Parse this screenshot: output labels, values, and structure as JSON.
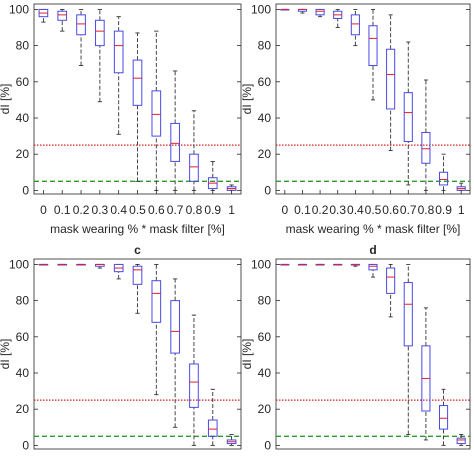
{
  "colors": {
    "box": "#4a4ae6",
    "median": "#e0202e",
    "whisker": "#333333",
    "outlier": "#444444",
    "upper_line": "#d42020",
    "lower_line": "#2e9a2e"
  },
  "chart_data": [
    {
      "type": "box",
      "title": "",
      "xlabel": "mask wearing % * mask filter [%]",
      "ylabel": "dI [%]",
      "categories": [
        "0",
        "0.1",
        "0.2",
        "0.3",
        "0.4",
        "0.5",
        "0.6",
        "0.7",
        "0.8",
        "0.9",
        "1"
      ],
      "ylim": [
        -2,
        103
      ],
      "yticks": [
        "0",
        "20",
        "40",
        "60",
        "80",
        "100"
      ],
      "reference_lines": [
        25,
        5
      ],
      "boxes": [
        {
          "min": 93,
          "q1": 96,
          "median": 98,
          "q3": 100,
          "max": 100,
          "outliers": []
        },
        {
          "min": 88,
          "q1": 94,
          "median": 97,
          "q3": 99,
          "max": 100,
          "outliers": []
        },
        {
          "min": 69,
          "q1": 86,
          "median": 92,
          "q3": 97,
          "max": 100,
          "outliers": []
        },
        {
          "min": 49,
          "q1": 80,
          "median": 88,
          "q3": 94,
          "max": 100,
          "outliers": []
        },
        {
          "min": 31,
          "q1": 65,
          "median": 80,
          "q3": 88,
          "max": 96,
          "outliers": []
        },
        {
          "min": 5,
          "q1": 47,
          "median": 62,
          "q3": 72,
          "max": 87,
          "outliers": []
        },
        {
          "min": 0,
          "q1": 30,
          "median": 42,
          "q3": 55,
          "max": 88,
          "outliers": []
        },
        {
          "min": 0,
          "q1": 16,
          "median": 26,
          "q3": 37,
          "max": 66,
          "outliers": []
        },
        {
          "min": 0,
          "q1": 5,
          "median": 13,
          "q3": 20,
          "max": 44,
          "outliers": []
        },
        {
          "min": 0,
          "q1": 1,
          "median": 4,
          "q3": 7,
          "max": 16,
          "outliers": []
        },
        {
          "min": 0,
          "q1": 0,
          "median": 1,
          "q3": 2,
          "max": 3,
          "outliers": []
        }
      ]
    },
    {
      "type": "box",
      "title": "",
      "xlabel": "mask wearing % * mask filter [%]",
      "ylabel": "dI [%]",
      "categories": [
        "0",
        "0.1",
        "0.2",
        "0.3",
        "0.4",
        "0.5",
        "0.6",
        "0.7",
        "0.8",
        "0.9",
        "1"
      ],
      "ylim": [
        -2,
        103
      ],
      "yticks": [
        "0",
        "20",
        "40",
        "60",
        "80",
        "100"
      ],
      "reference_lines": [
        25,
        5
      ],
      "boxes": [
        {
          "min": 100,
          "q1": 100,
          "median": 100,
          "q3": 100,
          "max": 100,
          "outliers": []
        },
        {
          "min": 98,
          "q1": 99,
          "median": 100,
          "q3": 100,
          "max": 100,
          "outliers": []
        },
        {
          "min": 96,
          "q1": 97,
          "median": 99,
          "q3": 100,
          "max": 100,
          "outliers": []
        },
        {
          "min": 90,
          "q1": 95,
          "median": 97,
          "q3": 99,
          "max": 100,
          "outliers": []
        },
        {
          "min": 80,
          "q1": 86,
          "median": 92,
          "q3": 97,
          "max": 100,
          "outliers": []
        },
        {
          "min": 50,
          "q1": 69,
          "median": 84,
          "q3": 91,
          "max": 100,
          "outliers": []
        },
        {
          "min": 22,
          "q1": 45,
          "median": 64,
          "q3": 78,
          "max": 97,
          "outliers": []
        },
        {
          "min": 3,
          "q1": 27,
          "median": 43,
          "q3": 54,
          "max": 82,
          "outliers": []
        },
        {
          "min": 0,
          "q1": 15,
          "median": 23,
          "q3": 32,
          "max": 61,
          "outliers": []
        },
        {
          "min": 0,
          "q1": 3,
          "median": 6,
          "q3": 10,
          "max": 20,
          "outliers": []
        },
        {
          "min": 0,
          "q1": 0,
          "median": 1,
          "q3": 2,
          "max": 4,
          "outliers": []
        }
      ]
    },
    {
      "type": "box",
      "title": "c",
      "xlabel": "",
      "ylabel": "dI [%]",
      "categories": [],
      "ylim": [
        -2,
        103
      ],
      "yticks": [
        "0",
        "20",
        "40",
        "60",
        "80",
        "100"
      ],
      "reference_lines": [
        25,
        5
      ],
      "boxes": [
        {
          "min": 100,
          "q1": 100,
          "median": 100,
          "q3": 100,
          "max": 100,
          "outliers": []
        },
        {
          "min": 100,
          "q1": 100,
          "median": 100,
          "q3": 100,
          "max": 100,
          "outliers": []
        },
        {
          "min": 100,
          "q1": 100,
          "median": 100,
          "q3": 100,
          "max": 100,
          "outliers": []
        },
        {
          "min": 98,
          "q1": 99,
          "median": 100,
          "q3": 100,
          "max": 100,
          "outliers": []
        },
        {
          "min": 92,
          "q1": 96,
          "median": 98,
          "q3": 100,
          "max": 100,
          "outliers": []
        },
        {
          "min": 73,
          "q1": 89,
          "median": 97,
          "q3": 99,
          "max": 100,
          "outliers": []
        },
        {
          "min": 28,
          "q1": 68,
          "median": 84,
          "q3": 91,
          "max": 100,
          "outliers": []
        },
        {
          "min": 10,
          "q1": 51,
          "median": 63,
          "q3": 80,
          "max": 92,
          "outliers": []
        },
        {
          "min": 0,
          "q1": 21,
          "median": 35,
          "q3": 45,
          "max": 72,
          "outliers": []
        },
        {
          "min": 0,
          "q1": 5,
          "median": 9,
          "q3": 14,
          "max": 31,
          "outliers": []
        },
        {
          "min": 0,
          "q1": 1,
          "median": 2,
          "q3": 3,
          "max": 6,
          "outliers": []
        }
      ]
    },
    {
      "type": "box",
      "title": "d",
      "xlabel": "",
      "ylabel": "dI [%]",
      "categories": [],
      "ylim": [
        -2,
        103
      ],
      "yticks": [
        "0",
        "20",
        "40",
        "60",
        "80",
        "100"
      ],
      "reference_lines": [
        25,
        5
      ],
      "boxes": [
        {
          "min": 100,
          "q1": 100,
          "median": 100,
          "q3": 100,
          "max": 100,
          "outliers": []
        },
        {
          "min": 100,
          "q1": 100,
          "median": 100,
          "q3": 100,
          "max": 100,
          "outliers": []
        },
        {
          "min": 100,
          "q1": 100,
          "median": 100,
          "q3": 100,
          "max": 100,
          "outliers": []
        },
        {
          "min": 100,
          "q1": 100,
          "median": 100,
          "q3": 100,
          "max": 100,
          "outliers": []
        },
        {
          "min": 99,
          "q1": 100,
          "median": 100,
          "q3": 100,
          "max": 100,
          "outliers": []
        },
        {
          "min": 93,
          "q1": 97,
          "median": 99,
          "q3": 100,
          "max": 100,
          "outliers": []
        },
        {
          "min": 71,
          "q1": 84,
          "median": 93,
          "q3": 98,
          "max": 100,
          "outliers": []
        },
        {
          "min": 6,
          "q1": 55,
          "median": 78,
          "q3": 90,
          "max": 100,
          "outliers": []
        },
        {
          "min": 3,
          "q1": 19,
          "median": 37,
          "q3": 55,
          "max": 76,
          "outliers": []
        },
        {
          "min": 0,
          "q1": 9,
          "median": 15,
          "q3": 22,
          "max": 31,
          "outliers": []
        },
        {
          "min": 0,
          "q1": 1,
          "median": 3,
          "q3": 4,
          "max": 6,
          "outliers": []
        }
      ]
    }
  ]
}
